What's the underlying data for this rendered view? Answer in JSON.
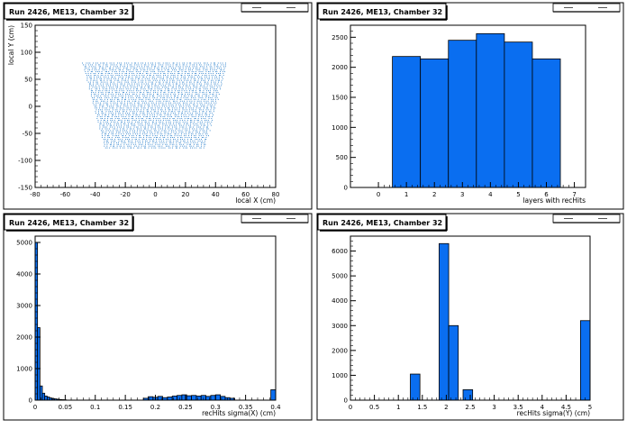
{
  "chart_data": [
    {
      "type": "scatter",
      "title": "Run 2426, ME13, Chamber 32",
      "xlabel": "local X (cm)",
      "ylabel": "local Y (cm)",
      "xlim": [
        -80,
        80
      ],
      "ylim": [
        -150,
        150
      ],
      "xticks": [
        -80,
        -60,
        -40,
        -20,
        0,
        20,
        40,
        60,
        80
      ],
      "yticks": [
        -150,
        -100,
        -50,
        0,
        50,
        100,
        150
      ],
      "region": {
        "y_top": 80,
        "y_bottom": -78,
        "x_top": [
          -48,
          48
        ],
        "x_bottom": [
          -33,
          33
        ],
        "row_step": 3.2,
        "col_step": 1.6
      },
      "color": "#1f78c8"
    },
    {
      "type": "bar",
      "title": "Run 2426, ME13, Chamber 32",
      "xlabel": "layers with recHits",
      "ylabel": "",
      "xlim": [
        -1,
        7.4
      ],
      "ylim": [
        0,
        2700
      ],
      "xticks": [
        0,
        1,
        2,
        3,
        4,
        5,
        6,
        7
      ],
      "yticks": [
        0,
        500,
        1000,
        1500,
        2000,
        2500
      ],
      "bins": [
        {
          "x0": 0.5,
          "x1": 1.5,
          "value": 2180
        },
        {
          "x0": 1.5,
          "x1": 2.5,
          "value": 2140
        },
        {
          "x0": 2.5,
          "x1": 3.5,
          "value": 2450
        },
        {
          "x0": 3.5,
          "x1": 4.5,
          "value": 2560
        },
        {
          "x0": 4.5,
          "x1": 5.5,
          "value": 2420
        },
        {
          "x0": 5.5,
          "x1": 6.5,
          "value": 2140
        }
      ],
      "color": "#0a6ef0"
    },
    {
      "type": "bar",
      "title": "Run 2426, ME13, Chamber 32",
      "xlabel": "recHits sigma(X) (cm)",
      "ylabel": "",
      "xlim": [
        0,
        0.4
      ],
      "ylim": [
        0,
        5200
      ],
      "xticks": [
        0,
        0.05,
        0.1,
        0.15,
        0.2,
        0.25,
        0.3,
        0.35,
        0.4
      ],
      "xticklabels": [
        "0",
        "0.05",
        "0.1",
        "0.15",
        "0.2",
        "0.25",
        "0.3",
        "0.35",
        "0.4"
      ],
      "yticks": [
        0,
        1000,
        2000,
        3000,
        4000,
        5000
      ],
      "bins": [
        {
          "x0": 0.0,
          "x1": 0.004,
          "value": 5000
        },
        {
          "x0": 0.004,
          "x1": 0.008,
          "value": 2300
        },
        {
          "x0": 0.008,
          "x1": 0.012,
          "value": 450
        },
        {
          "x0": 0.012,
          "x1": 0.016,
          "value": 220
        },
        {
          "x0": 0.016,
          "x1": 0.02,
          "value": 130
        },
        {
          "x0": 0.02,
          "x1": 0.024,
          "value": 100
        },
        {
          "x0": 0.024,
          "x1": 0.028,
          "value": 70
        },
        {
          "x0": 0.028,
          "x1": 0.032,
          "value": 50
        },
        {
          "x0": 0.032,
          "x1": 0.036,
          "value": 40
        },
        {
          "x0": 0.036,
          "x1": 0.04,
          "value": 30
        },
        {
          "x0": 0.04,
          "x1": 0.044,
          "value": 20
        },
        {
          "x0": 0.044,
          "x1": 0.048,
          "value": 15
        },
        {
          "x0": 0.048,
          "x1": 0.052,
          "value": 10
        },
        {
          "x0": 0.18,
          "x1": 0.188,
          "value": 60
        },
        {
          "x0": 0.188,
          "x1": 0.196,
          "value": 110
        },
        {
          "x0": 0.196,
          "x1": 0.204,
          "value": 90
        },
        {
          "x0": 0.204,
          "x1": 0.212,
          "value": 120
        },
        {
          "x0": 0.212,
          "x1": 0.22,
          "value": 80
        },
        {
          "x0": 0.22,
          "x1": 0.228,
          "value": 100
        },
        {
          "x0": 0.228,
          "x1": 0.236,
          "value": 130
        },
        {
          "x0": 0.236,
          "x1": 0.244,
          "value": 150
        },
        {
          "x0": 0.244,
          "x1": 0.252,
          "value": 170
        },
        {
          "x0": 0.252,
          "x1": 0.26,
          "value": 140
        },
        {
          "x0": 0.26,
          "x1": 0.268,
          "value": 150
        },
        {
          "x0": 0.268,
          "x1": 0.276,
          "value": 130
        },
        {
          "x0": 0.276,
          "x1": 0.284,
          "value": 150
        },
        {
          "x0": 0.284,
          "x1": 0.292,
          "value": 120
        },
        {
          "x0": 0.292,
          "x1": 0.3,
          "value": 150
        },
        {
          "x0": 0.3,
          "x1": 0.308,
          "value": 170
        },
        {
          "x0": 0.308,
          "x1": 0.316,
          "value": 120
        },
        {
          "x0": 0.316,
          "x1": 0.324,
          "value": 80
        },
        {
          "x0": 0.324,
          "x1": 0.332,
          "value": 60
        },
        {
          "x0": 0.392,
          "x1": 0.4,
          "value": 330
        }
      ],
      "color": "#0a6ef0"
    },
    {
      "type": "bar",
      "title": "Run 2426, ME13, Chamber 32",
      "xlabel": "recHits sigma(Y) (cm)",
      "ylabel": "",
      "xlim": [
        0,
        5
      ],
      "ylim": [
        0,
        6600
      ],
      "xticks": [
        0,
        0.5,
        1,
        1.5,
        2,
        2.5,
        3,
        3.5,
        4,
        4.5,
        5
      ],
      "xticklabels": [
        "0",
        "0.5",
        "1",
        "1.5",
        "2",
        "2.5",
        "3",
        "3.5",
        "4",
        "4.5",
        "5"
      ],
      "yticks": [
        0,
        1000,
        2000,
        3000,
        4000,
        5000,
        6000
      ],
      "bins": [
        {
          "x0": 1.25,
          "x1": 1.45,
          "value": 1050
        },
        {
          "x0": 1.85,
          "x1": 2.05,
          "value": 6300
        },
        {
          "x0": 2.05,
          "x1": 2.25,
          "value": 3000
        },
        {
          "x0": 2.35,
          "x1": 2.55,
          "value": 420
        },
        {
          "x0": 4.8,
          "x1": 5.0,
          "value": 3200
        }
      ],
      "color": "#0a6ef0"
    }
  ]
}
